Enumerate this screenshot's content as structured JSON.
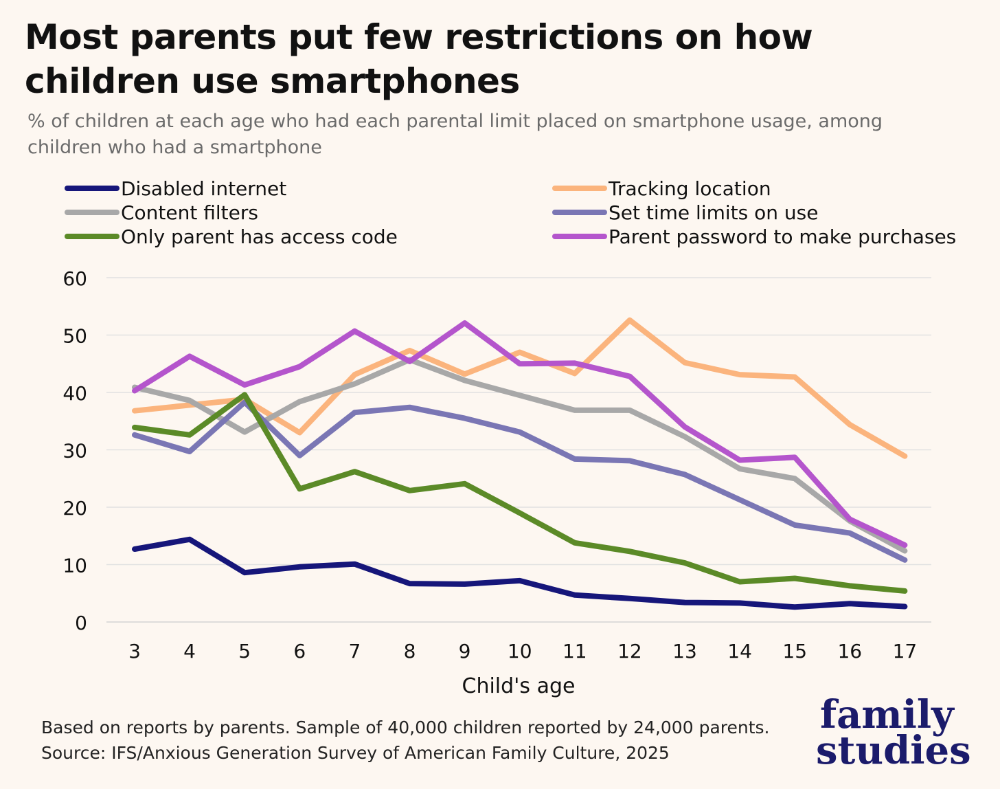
{
  "header": {
    "title": "Most parents put few restrictions on how children use smartphones",
    "subtitle": "% of children at each age who had each parental limit placed on smartphone usage, among children who had a smartphone"
  },
  "footer": {
    "note": "Based on reports by parents. Sample of 40,000 children reported by 24,000 parents.",
    "source": "Source: IFS/Anxious Generation Survey of American Family Culture, 2025"
  },
  "logo": {
    "line1": "family",
    "line2": "studies"
  },
  "chart_data": {
    "type": "line",
    "title": "Most parents put few restrictions on how children use smartphones",
    "subtitle": "% of children at each age who had each parental limit placed on smartphone usage, among children who had a smartphone",
    "xlabel": "Child's age",
    "ylabel": "",
    "x": [
      3,
      4,
      5,
      6,
      7,
      8,
      9,
      10,
      11,
      12,
      13,
      14,
      15,
      16,
      17
    ],
    "ylim": [
      0,
      60
    ],
    "yticks": [
      0,
      10,
      20,
      30,
      40,
      50,
      60
    ],
    "grid": "horizontal",
    "legend_position": "top",
    "series": [
      {
        "name": "Disabled internet",
        "color": "#16167a",
        "values": [
          12.7,
          14.4,
          8.6,
          9.6,
          10.1,
          6.7,
          6.6,
          7.2,
          4.7,
          4.1,
          3.4,
          3.3,
          2.6,
          3.2,
          2.7
        ]
      },
      {
        "name": "Tracking location",
        "color": "#fbb47d",
        "values": [
          36.8,
          37.8,
          38.8,
          33.0,
          43.1,
          47.3,
          43.2,
          47.0,
          43.3,
          52.6,
          45.2,
          43.1,
          42.7,
          34.4,
          28.9
        ]
      },
      {
        "name": "Content filters",
        "color": "#a8a8a8",
        "values": [
          40.9,
          38.6,
          33.1,
          38.4,
          41.5,
          45.7,
          42.1,
          39.5,
          36.9,
          36.9,
          32.3,
          26.7,
          25.0,
          17.6,
          12.4
        ]
      },
      {
        "name": "Set time limits on use",
        "color": "#7a76b4",
        "values": [
          32.6,
          29.7,
          38.3,
          29.0,
          36.5,
          37.4,
          35.5,
          33.1,
          28.4,
          28.1,
          25.7,
          21.3,
          16.9,
          15.5,
          10.8
        ]
      },
      {
        "name": "Only parent has access code",
        "color": "#5b8a27",
        "values": [
          33.9,
          32.6,
          39.6,
          23.2,
          26.2,
          22.9,
          24.1,
          19.0,
          13.8,
          12.3,
          10.3,
          7.0,
          7.6,
          6.3,
          5.4
        ]
      },
      {
        "name": "Parent password to make purchases",
        "color": "#b455cc",
        "values": [
          40.3,
          46.3,
          41.3,
          44.5,
          50.7,
          45.4,
          52.1,
          45.0,
          45.1,
          42.8,
          34.0,
          28.2,
          28.7,
          17.9,
          13.4
        ]
      }
    ]
  }
}
